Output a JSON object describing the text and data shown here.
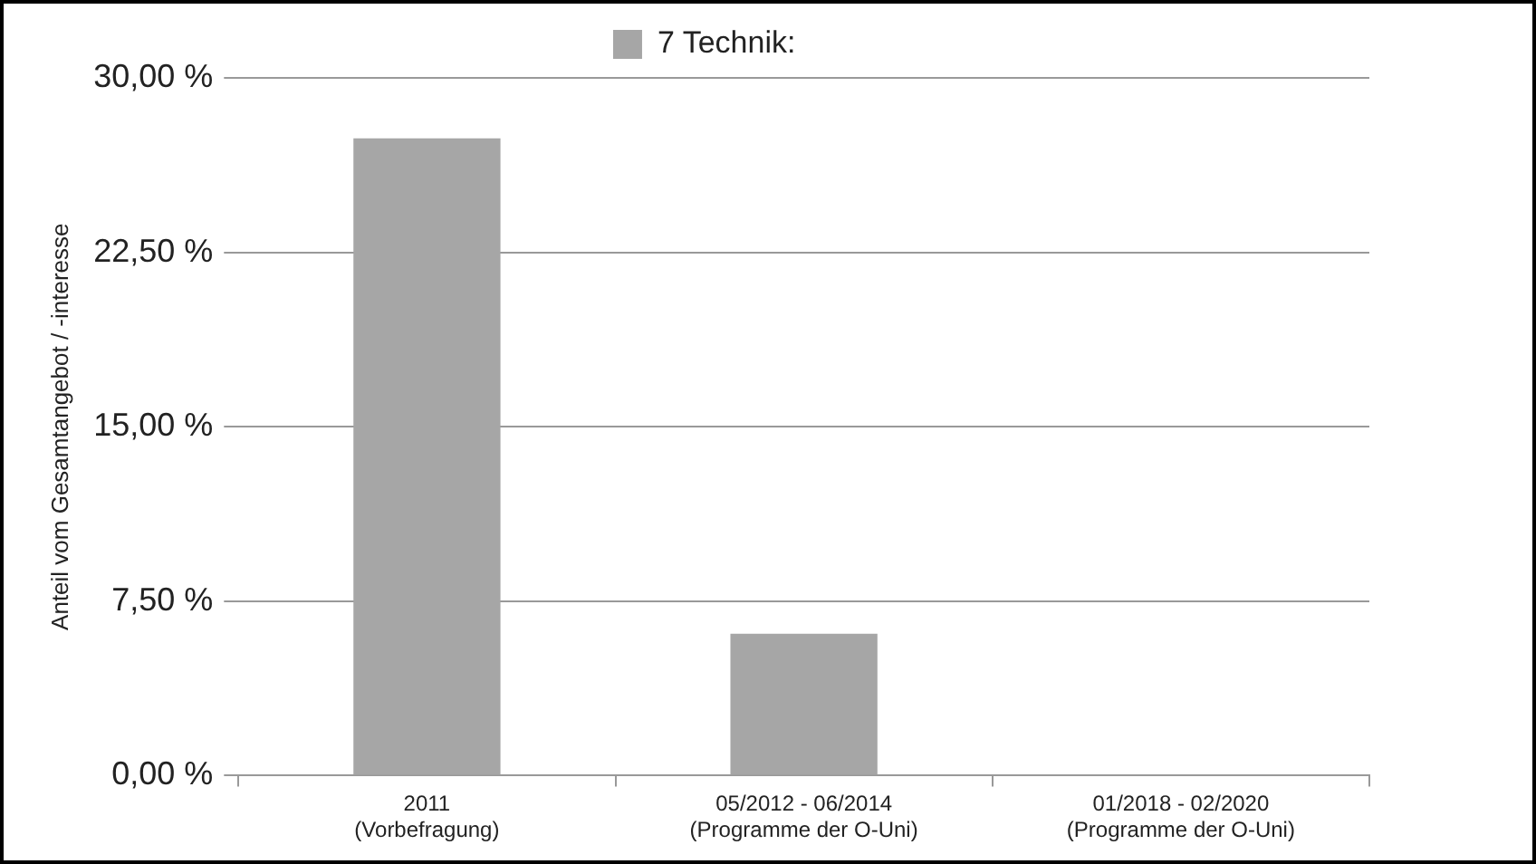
{
  "chart_data": {
    "type": "bar",
    "ylabel": "Anteil vom Gesamtangebot / -interesse",
    "categories": [
      "2011\n(Vorbefragung)",
      "05/2012 - 06/2014\n(Programme der O-Uni)",
      "01/2018 - 02/2020\n(Programme der O-Uni)"
    ],
    "series": [
      {
        "name": "7 Technik:",
        "color": "#a6a6a6",
        "values": [
          27.4,
          6.1,
          0
        ]
      }
    ],
    "ylim": [
      0,
      30
    ],
    "yticks": [
      {
        "value": 0,
        "label": "0,00 %"
      },
      {
        "value": 7.5,
        "label": "7,50 %"
      },
      {
        "value": 15,
        "label": "15,00 %"
      },
      {
        "value": 22.5,
        "label": "22,50 %"
      },
      {
        "value": 30,
        "label": "30,00 %"
      }
    ],
    "grid": "y",
    "legend": "top"
  }
}
